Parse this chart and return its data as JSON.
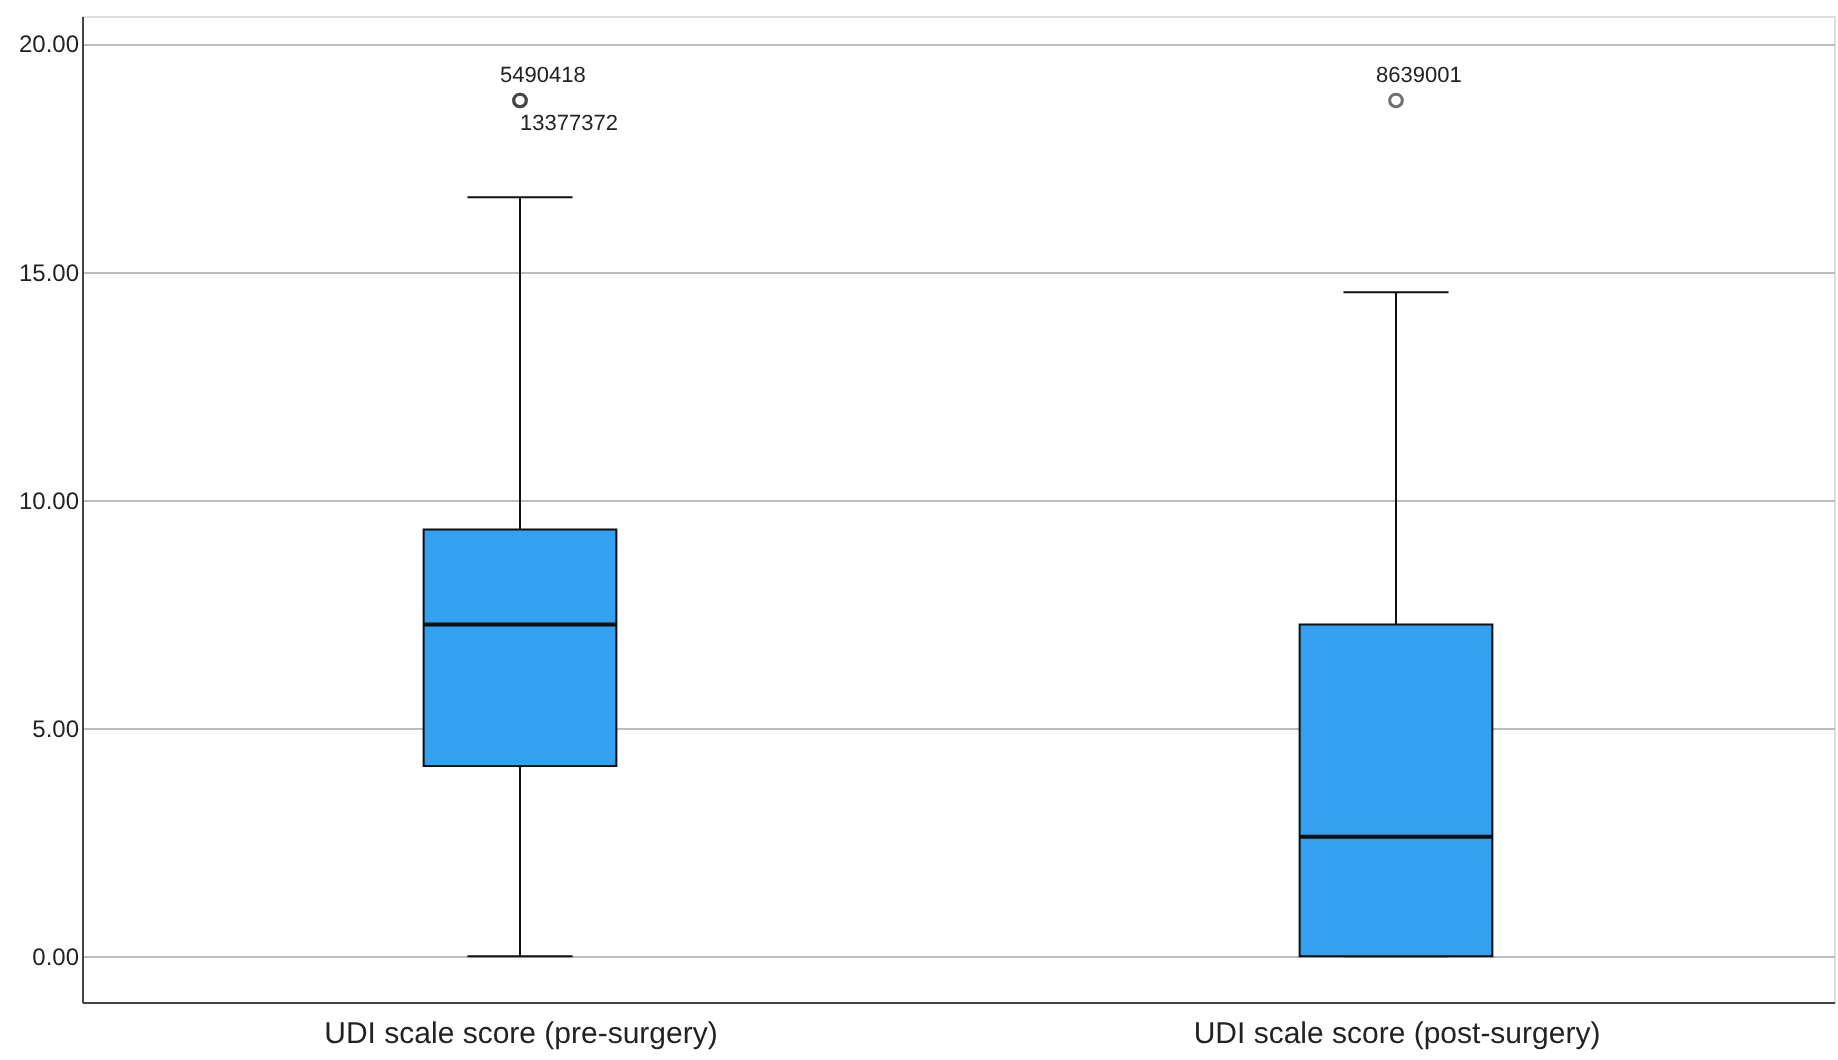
{
  "chart_data": {
    "type": "box",
    "categories": [
      "UDI scale score (pre-surgery)",
      "UDI scale score (post-surgery)"
    ],
    "series": [
      {
        "color": "#33a0f0",
        "boxes": [
          {
            "low": 0,
            "q1": 4.17,
            "median": 7.27,
            "q3": 9.35,
            "high": 16.63,
            "outliers": [
              18.75,
              18.75
            ]
          },
          {
            "low": 0,
            "q1": 0,
            "median": 2.62,
            "q3": 7.27,
            "high": 14.55,
            "outliers": [
              18.75
            ]
          }
        ]
      }
    ],
    "ylim": [
      -1,
      20.6
    ],
    "yticks": [
      {
        "value": 0,
        "label": "0.00"
      },
      {
        "value": 5,
        "label": "5.00"
      },
      {
        "value": 10,
        "label": "10.00"
      },
      {
        "value": 15,
        "label": "15.00"
      },
      {
        "value": 20,
        "label": "20.00"
      }
    ],
    "grid": "y",
    "annotations": [
      "5490418",
      "13377372",
      "8639001"
    ]
  }
}
